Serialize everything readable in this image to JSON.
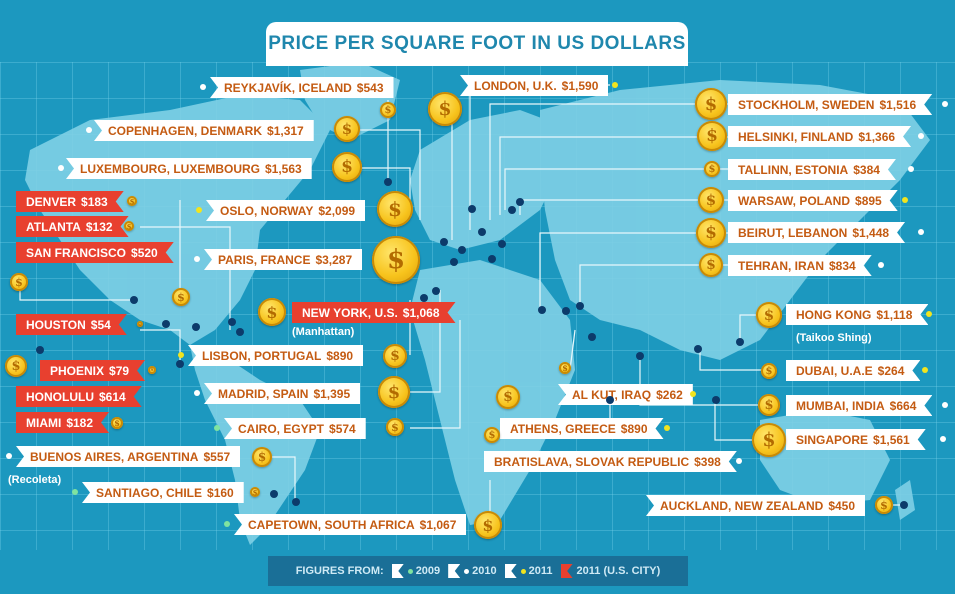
{
  "title": "PRICE PER SQUARE FOOT IN US DOLLARS",
  "coin_symbol": "$",
  "legend": {
    "prefix": "FIGURES FROM:",
    "items": [
      {
        "label": "2009",
        "dot_color": "#7fe3a0"
      },
      {
        "label": "2010",
        "dot_color": "#ffffff"
      },
      {
        "label": "2011",
        "dot_color": "#f2e41e"
      },
      {
        "label": "2011 (U.S. CITY)",
        "dot_color": "#e8402f"
      }
    ]
  },
  "colors": {
    "ocean": "#1c98bf",
    "land": "#7fd0e6",
    "label_text": "#c45b12",
    "us_label": "#e8402f",
    "coin": "#f7c31c",
    "marker": "#0c3b6b"
  },
  "cities": {
    "reykjavik": {
      "city": "REYKJAVÍK, ICELAND",
      "price": "$543"
    },
    "copenhagen": {
      "city": "COPENHAGEN, DENMARK",
      "price": "$1,317"
    },
    "luxembourg": {
      "city": "LUXEMBOURG, LUXEMBOURG",
      "price": "$1,563"
    },
    "oslo": {
      "city": "OSLO, NORWAY",
      "price": "$2,099"
    },
    "paris": {
      "city": "PARIS, FRANCE",
      "price": "$3,287"
    },
    "denver": {
      "city": "DENVER",
      "price": "$183"
    },
    "atlanta": {
      "city": "ATLANTA",
      "price": "$132"
    },
    "sanfrancisco": {
      "city": "SAN FRANCISCO",
      "price": "$520"
    },
    "houston": {
      "city": "HOUSTON",
      "price": "$54"
    },
    "phoenix": {
      "city": "PHOENIX",
      "price": "$79"
    },
    "honolulu": {
      "city": "HONOLULU",
      "price": "$614"
    },
    "miami": {
      "city": "MIAMI",
      "price": "$182"
    },
    "newyork": {
      "city": "NEW YORK, U.S.",
      "price": "$1,068",
      "sub": "(Manhattan)"
    },
    "lisbon": {
      "city": "LISBON, PORTUGAL",
      "price": "$890"
    },
    "madrid": {
      "city": "MADRID, SPAIN",
      "price": "$1,395"
    },
    "cairo": {
      "city": "CAIRO, EGYPT",
      "price": "$574"
    },
    "buenosaires": {
      "city": "BUENOS AIRES, ARGENTINA",
      "price": "$557",
      "sub": "(Recoleta)"
    },
    "santiago": {
      "city": "SANTIAGO, CHILE",
      "price": "$160"
    },
    "capetown": {
      "city": "CAPETOWN, SOUTH AFRICA",
      "price": "$1,067"
    },
    "london": {
      "city": "LONDON, U.K.",
      "price": "$1,590"
    },
    "stockholm": {
      "city": "STOCKHOLM, SWEDEN",
      "price": "$1,516"
    },
    "helsinki": {
      "city": "HELSINKI, FINLAND",
      "price": "$1,366"
    },
    "tallinn": {
      "city": "TALLINN, ESTONIA",
      "price": "$384"
    },
    "warsaw": {
      "city": "WARSAW, POLAND",
      "price": "$895"
    },
    "beirut": {
      "city": "BEIRUT, LEBANON",
      "price": "$1,448"
    },
    "tehran": {
      "city": "TEHRAN, IRAN",
      "price": "$834"
    },
    "hongkong": {
      "city": "HONG KONG",
      "price": "$1,118",
      "sub": "(Taikoo Shing)"
    },
    "dubai": {
      "city": "DUBAI, U.A.E",
      "price": "$264"
    },
    "mumbai": {
      "city": "MUMBAI, INDIA",
      "price": "$664"
    },
    "singapore": {
      "city": "SINGAPORE",
      "price": "$1,561"
    },
    "alkut": {
      "city": "AL KUT, IRAQ",
      "price": "$262"
    },
    "athens": {
      "city": "ATHENS, GREECE",
      "price": "$890"
    },
    "bratislava": {
      "city": "BRATISLAVA, SLOVAK REPUBLIC",
      "price": "$398"
    },
    "auckland": {
      "city": "AUCKLAND, NEW ZEALAND",
      "price": "$450"
    }
  }
}
